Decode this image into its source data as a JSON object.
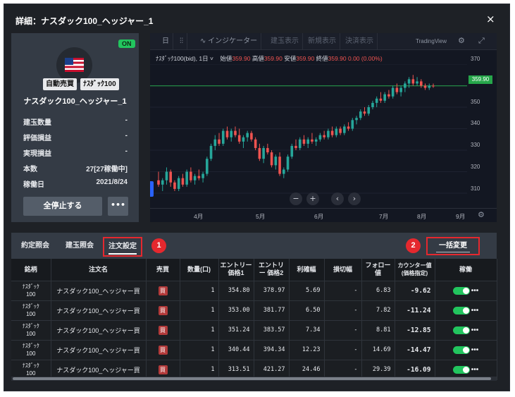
{
  "dialog": {
    "title": "詳細：ナスダック100_ヘッジャー_1",
    "close_glyph": "×"
  },
  "card": {
    "status_badge": "ON",
    "flag_icon": "us-flag-icon",
    "tags": [
      "自動売買",
      "ﾅｽﾀﾞｯｸ100"
    ],
    "strategy_name": "ナスダック100_ヘッジャー_1",
    "stats": [
      {
        "label": "建玉数量",
        "value": "-"
      },
      {
        "label": "評価損益",
        "value": "-"
      },
      {
        "label": "実現損益",
        "value": "-"
      },
      {
        "label": "本数",
        "value": "27[27稼働中]"
      },
      {
        "label": "稼働日",
        "value": "2021/8/24"
      }
    ],
    "stop_all_label": "全停止する",
    "more_label": "•••"
  },
  "chart_toolbar": {
    "items": [
      "日",
      "⫶⫶",
      "∿ インジケーター",
      "建玉表示",
      "新規表示",
      "決済表示"
    ],
    "brand": "TradingView",
    "settings_icon": "gear-icon",
    "fullscreen_icon": "expand-icon"
  },
  "chart_header": {
    "symbol": "ﾅｽﾀﾞｯｸ100(bid), 1日 ˅",
    "open_label": "始値",
    "open": "359.90",
    "high_label": "高値",
    "high": "359.90",
    "low_label": "安値",
    "low": "359.90",
    "close_label": "終値",
    "close": "359.90",
    "change": "0.00 (0.00%)"
  },
  "chart_nav": {
    "zoom_out": "−",
    "zoom_in": "+",
    "prev": "‹",
    "next": "›"
  },
  "chart_data": {
    "type": "candlestick",
    "x_ticks": [
      "4月",
      "5月",
      "6月",
      "7月",
      "8月",
      "9月"
    ],
    "y_ticks": [
      370,
      360,
      350,
      340,
      330,
      320,
      310
    ],
    "ylim": [
      305,
      372
    ],
    "last_price": "359.90",
    "candles": [
      [
        316,
        320,
        313,
        314
      ],
      [
        314,
        317,
        311,
        316
      ],
      [
        316,
        322,
        314,
        320
      ],
      [
        320,
        321,
        313,
        315
      ],
      [
        315,
        316,
        311,
        312
      ],
      [
        312,
        318,
        311,
        317
      ],
      [
        317,
        319,
        313,
        314
      ],
      [
        314,
        321,
        313,
        320
      ],
      [
        320,
        322,
        315,
        316
      ],
      [
        316,
        319,
        314,
        318
      ],
      [
        318,
        321,
        316,
        317
      ],
      [
        317,
        320,
        315,
        319
      ],
      [
        319,
        327,
        318,
        326
      ],
      [
        326,
        333,
        325,
        332
      ],
      [
        332,
        337,
        330,
        335
      ],
      [
        335,
        338,
        332,
        333
      ],
      [
        333,
        340,
        332,
        339
      ],
      [
        339,
        341,
        335,
        336
      ],
      [
        336,
        340,
        334,
        339
      ],
      [
        339,
        341,
        336,
        337
      ],
      [
        337,
        340,
        333,
        334
      ],
      [
        334,
        337,
        331,
        336
      ],
      [
        336,
        339,
        334,
        338
      ],
      [
        338,
        339,
        334,
        335
      ],
      [
        335,
        336,
        330,
        331
      ],
      [
        331,
        333,
        325,
        326
      ],
      [
        326,
        332,
        324,
        331
      ],
      [
        331,
        333,
        328,
        329
      ],
      [
        329,
        330,
        322,
        323
      ],
      [
        323,
        328,
        321,
        327
      ],
      [
        327,
        329,
        318,
        319
      ],
      [
        319,
        322,
        317,
        321
      ],
      [
        321,
        328,
        320,
        327
      ],
      [
        327,
        333,
        326,
        332
      ],
      [
        332,
        335,
        330,
        331
      ],
      [
        331,
        336,
        330,
        335
      ],
      [
        335,
        337,
        332,
        333
      ],
      [
        333,
        336,
        331,
        335
      ],
      [
        335,
        338,
        333,
        334
      ],
      [
        334,
        336,
        332,
        335
      ],
      [
        335,
        338,
        334,
        337
      ],
      [
        337,
        339,
        335,
        336
      ],
      [
        336,
        340,
        335,
        339
      ],
      [
        339,
        341,
        336,
        337
      ],
      [
        337,
        341,
        336,
        340
      ],
      [
        340,
        341,
        337,
        338
      ],
      [
        338,
        342,
        337,
        341
      ],
      [
        341,
        343,
        339,
        340
      ],
      [
        340,
        345,
        339,
        344
      ],
      [
        344,
        346,
        342,
        345
      ],
      [
        345,
        349,
        344,
        348
      ],
      [
        348,
        350,
        346,
        347
      ],
      [
        347,
        351,
        346,
        350
      ],
      [
        350,
        353,
        349,
        352
      ],
      [
        352,
        355,
        350,
        354
      ],
      [
        354,
        357,
        352,
        353
      ],
      [
        353,
        357,
        352,
        356
      ],
      [
        356,
        358,
        354,
        355
      ],
      [
        355,
        360,
        354,
        359
      ],
      [
        359,
        361,
        356,
        357
      ],
      [
        357,
        360,
        355,
        359
      ],
      [
        359,
        362,
        357,
        361
      ],
      [
        361,
        364,
        359,
        363
      ],
      [
        363,
        365,
        360,
        361
      ],
      [
        361,
        364,
        360,
        362
      ],
      [
        362,
        363,
        359,
        360
      ],
      [
        360,
        361,
        358,
        359
      ],
      [
        359,
        361,
        358,
        360
      ],
      [
        360,
        361,
        359,
        359.9
      ]
    ]
  },
  "tabs": {
    "items": [
      "約定照会",
      "建玉照会",
      "注文設定"
    ],
    "active_index": 2,
    "marker_1": "1",
    "marker_2": "2",
    "bulk_change_label": "一括変更"
  },
  "table": {
    "headers": [
      "銘柄",
      "注文名",
      "売買",
      "数量(口)",
      "エントリー\n価格1",
      "エントリ\nー 価格2",
      "利確幅",
      "損切幅",
      "フォロー\n値",
      "カウンター値\n(価格指定)",
      "稼働"
    ],
    "rows": [
      {
        "symbol": "ﾅｽﾀﾞｯｸ\n100",
        "name": "ナスダック100_ヘッジャー買",
        "side": "買",
        "qty": "1",
        "entry1": "354.80",
        "entry2": "378.97",
        "take_profit": "5.69",
        "stop_loss": "-",
        "follow": "6.83",
        "counter": "-9.62"
      },
      {
        "symbol": "ﾅｽﾀﾞｯｸ\n100",
        "name": "ナスダック100_ヘッジャー買",
        "side": "買",
        "qty": "1",
        "entry1": "353.00",
        "entry2": "381.77",
        "take_profit": "6.50",
        "stop_loss": "-",
        "follow": "7.82",
        "counter": "-11.24"
      },
      {
        "symbol": "ﾅｽﾀﾞｯｸ\n100",
        "name": "ナスダック100_ヘッジャー買",
        "side": "買",
        "qty": "1",
        "entry1": "351.24",
        "entry2": "383.57",
        "take_profit": "7.34",
        "stop_loss": "-",
        "follow": "8.81",
        "counter": "-12.85"
      },
      {
        "symbol": "ﾅｽﾀﾞｯｸ\n100",
        "name": "ナスダック100_ヘッジャー買",
        "side": "買",
        "qty": "1",
        "entry1": "340.44",
        "entry2": "394.34",
        "take_profit": "12.23",
        "stop_loss": "-",
        "follow": "14.69",
        "counter": "-14.47"
      },
      {
        "symbol": "ﾅｽﾀﾞｯｸ\n100",
        "name": "ナスダック100_ヘッジャー買",
        "side": "買",
        "qty": "1",
        "entry1": "313.51",
        "entry2": "421.27",
        "take_profit": "24.46",
        "stop_loss": "-",
        "follow": "29.39",
        "counter": "-16.09"
      }
    ],
    "toggle_state": "on",
    "row_more": "•••"
  },
  "colors": {
    "up": "#26a69a",
    "down": "#ef5350",
    "toggle_on": "#22c55e",
    "highlight": "#e5282e",
    "price_line": "#26a64a"
  }
}
